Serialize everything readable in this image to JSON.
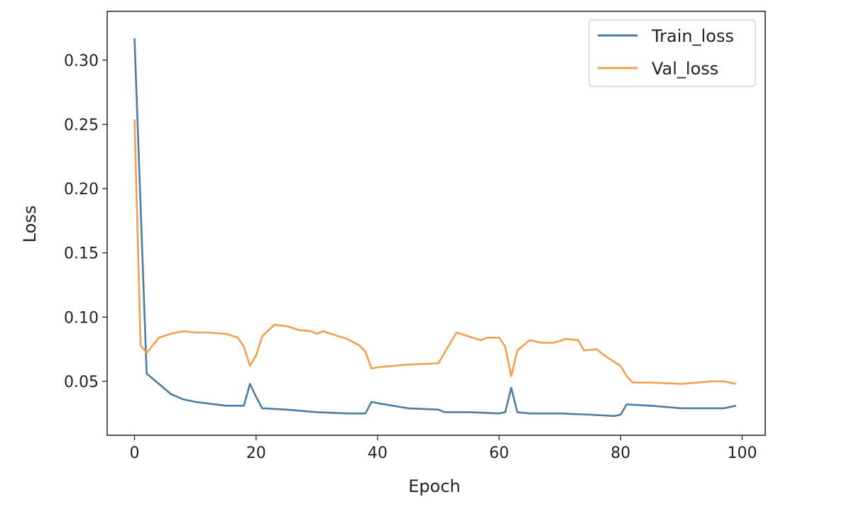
{
  "chart_data": {
    "type": "line",
    "title": "",
    "xlabel": "Epoch",
    "ylabel": "Loss",
    "xlim": [
      -4.5,
      103.8
    ],
    "ylim": [
      0.008,
      0.338
    ],
    "xticks": [
      0,
      20,
      40,
      60,
      80,
      100
    ],
    "yticks": [
      0.05,
      0.1,
      0.15,
      0.2,
      0.25,
      0.3
    ],
    "ytick_labels": [
      "0.05",
      "0.10",
      "0.15",
      "0.20",
      "0.25",
      "0.30"
    ],
    "grid": false,
    "legend_position": "top-right",
    "colors": {
      "Train_loss": "#4a7ea5",
      "Val_loss": "#f0a050"
    },
    "series": [
      {
        "name": "Train_loss",
        "x": [
          0,
          2,
          4,
          6,
          8,
          10,
          15,
          18,
          19,
          20,
          21,
          25,
          30,
          35,
          38,
          39,
          40,
          45,
          50,
          51,
          55,
          60,
          61,
          62,
          63,
          65,
          70,
          75,
          79,
          80,
          81,
          85,
          90,
          95,
          97,
          99
        ],
        "y": [
          0.317,
          0.056,
          0.048,
          0.04,
          0.036,
          0.034,
          0.031,
          0.031,
          0.048,
          0.038,
          0.029,
          0.028,
          0.026,
          0.025,
          0.025,
          0.034,
          0.033,
          0.029,
          0.028,
          0.026,
          0.026,
          0.025,
          0.026,
          0.045,
          0.026,
          0.025,
          0.025,
          0.024,
          0.023,
          0.024,
          0.032,
          0.031,
          0.029,
          0.029,
          0.029,
          0.031
        ]
      },
      {
        "name": "Val_loss",
        "x": [
          0,
          1,
          2,
          3,
          4,
          6,
          8,
          10,
          12,
          15,
          17,
          18,
          19,
          20,
          21,
          23,
          25,
          27,
          29,
          30,
          31,
          33,
          35,
          37,
          38,
          39,
          40,
          45,
          50,
          52,
          53,
          55,
          57,
          58,
          60,
          61,
          62,
          63,
          65,
          67,
          69,
          71,
          73,
          74,
          76,
          78,
          80,
          81,
          82,
          85,
          90,
          95,
          97,
          99
        ],
        "y": [
          0.254,
          0.078,
          0.072,
          0.078,
          0.084,
          0.087,
          0.089,
          0.088,
          0.088,
          0.087,
          0.084,
          0.077,
          0.062,
          0.07,
          0.085,
          0.094,
          0.093,
          0.09,
          0.089,
          0.087,
          0.089,
          0.086,
          0.083,
          0.078,
          0.073,
          0.06,
          0.061,
          0.063,
          0.064,
          0.08,
          0.088,
          0.085,
          0.082,
          0.084,
          0.084,
          0.077,
          0.054,
          0.074,
          0.082,
          0.08,
          0.08,
          0.083,
          0.082,
          0.074,
          0.075,
          0.068,
          0.062,
          0.054,
          0.049,
          0.049,
          0.048,
          0.05,
          0.05,
          0.048
        ]
      }
    ]
  }
}
